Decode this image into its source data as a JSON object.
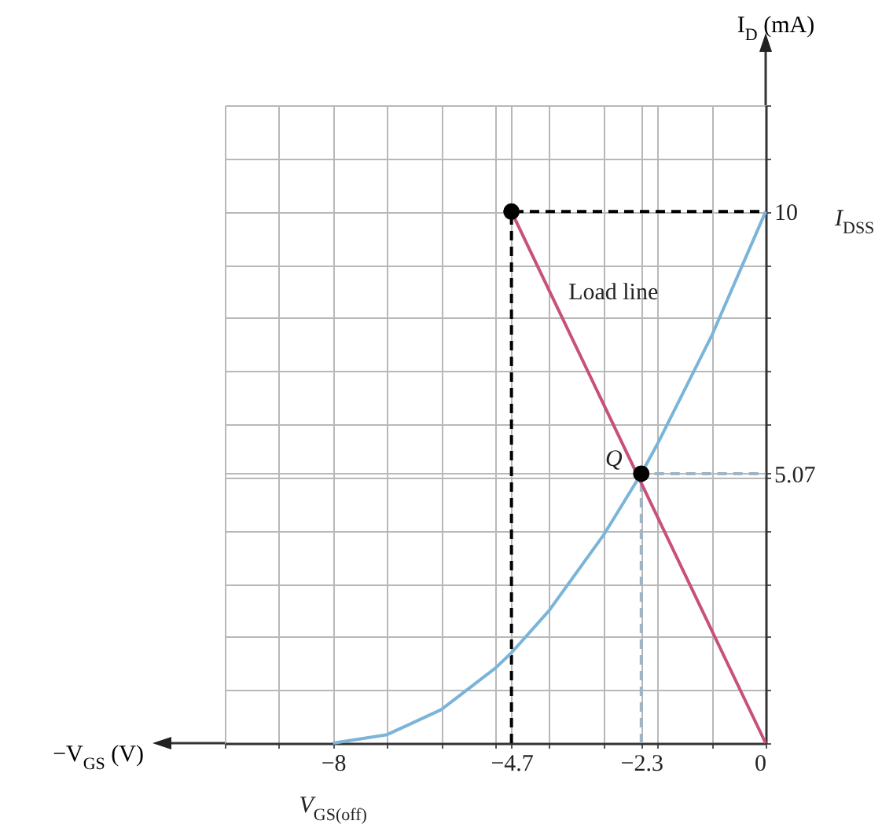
{
  "chart_data": {
    "type": "line",
    "xlabel": "−V$_{GS}$ (V)",
    "ylabel": "I$_{D}$ (mA)",
    "xlim": [
      -10,
      0
    ],
    "ylim": [
      0,
      12
    ],
    "xticks": [
      {
        "value": -10,
        "label": null
      },
      {
        "value": -9,
        "label": null
      },
      -8,
      {
        "value": -7,
        "label": null
      },
      {
        "value": -6,
        "label": null
      },
      {
        "value": -5,
        "label": null
      },
      -4.7,
      {
        "value": -4,
        "label": null
      },
      {
        "value": -3,
        "label": null
      },
      -2.3,
      {
        "value": -2,
        "label": null
      },
      {
        "value": -1,
        "label": null
      },
      0
    ],
    "yticks": [
      {
        "value": 0,
        "label": null
      },
      {
        "value": 1,
        "label": null
      },
      {
        "value": 2,
        "label": null
      },
      {
        "value": 3,
        "label": null
      },
      {
        "value": 4,
        "label": null
      },
      5.07,
      {
        "value": 5,
        "label": null
      },
      {
        "value": 6,
        "label": null
      },
      {
        "value": 7,
        "label": null
      },
      {
        "value": 8,
        "label": null
      },
      {
        "value": 9,
        "label": null
      },
      10,
      {
        "value": 11,
        "label": null
      },
      {
        "value": 12,
        "label": null
      }
    ],
    "grid": true,
    "series": [
      {
        "type": "line",
        "color": "#000000",
        "line_style": "dashed",
        "x": [
          -4.7,
          -4.7,
          0
        ],
        "values": [
          0,
          10,
          10
        ]
      },
      {
        "type": "line",
        "color": "#9fb4c4",
        "line_style": "dashed",
        "x": [
          -2.3,
          -2.3,
          0
        ],
        "values": [
          0,
          5.07,
          5.07
        ]
      },
      {
        "type": "line",
        "color": "#7ab4d8",
        "line_style": "solid",
        "x": [
          -8,
          -7,
          -6,
          -5,
          -4.7,
          -4,
          -3,
          -2.3,
          -2,
          -1,
          0
        ],
        "values": [
          0,
          0.16,
          0.63,
          1.41,
          1.7,
          2.5,
          3.91,
          5.07,
          5.63,
          7.66,
          10
        ]
      },
      {
        "type": "line",
        "name": "Load line",
        "color": "#c8507a",
        "line_style": "solid",
        "x": [
          -4.7,
          0
        ],
        "values": [
          10,
          0
        ]
      },
      {
        "type": "scatter",
        "color": "#000000",
        "marker": "circle",
        "x": [
          -4.7,
          -2.3
        ],
        "values": [
          10,
          5.07
        ]
      }
    ],
    "annotations": [
      {
        "text": "Q",
        "x": -2.3,
        "y": 5.07
      },
      {
        "text": "I$_{DSS}$",
        "x": 0,
        "y": 10
      },
      {
        "text": "V$_{GS(off)}$",
        "x": -8,
        "y": 0
      }
    ]
  }
}
